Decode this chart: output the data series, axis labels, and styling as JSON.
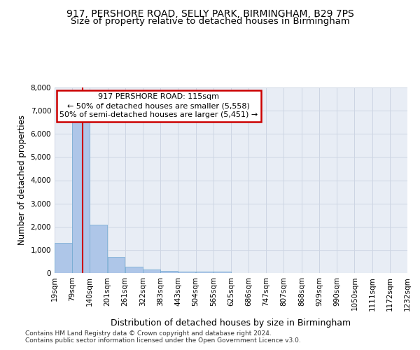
{
  "title1": "917, PERSHORE ROAD, SELLY PARK, BIRMINGHAM, B29 7PS",
  "title2": "Size of property relative to detached houses in Birmingham",
  "xlabel": "Distribution of detached houses by size in Birmingham",
  "ylabel": "Number of detached properties",
  "footer1": "Contains HM Land Registry data © Crown copyright and database right 2024.",
  "footer2": "Contains public sector information licensed under the Open Government Licence v3.0.",
  "annotation_title": "917 PERSHORE ROAD: 115sqm",
  "annotation_line1": "← 50% of detached houses are smaller (5,558)",
  "annotation_line2": "50% of semi-detached houses are larger (5,451) →",
  "property_size_sqm": 115,
  "bar_left_edges": [
    19,
    79,
    140,
    201,
    261,
    322,
    383,
    443,
    504,
    565,
    625,
    686,
    747,
    807,
    868,
    929,
    990,
    1050,
    1111,
    1172
  ],
  "bar_widths": [
    60,
    61,
    61,
    60,
    61,
    61,
    60,
    61,
    61,
    60,
    61,
    61,
    60,
    61,
    61,
    61,
    60,
    61,
    61,
    60
  ],
  "bar_heights": [
    1300,
    6580,
    2080,
    700,
    270,
    150,
    100,
    60,
    55,
    70,
    0,
    0,
    0,
    0,
    0,
    0,
    0,
    0,
    0,
    0
  ],
  "bar_color": "#aec6e8",
  "bar_edge_color": "#6fa8d0",
  "vline_x": 115,
  "vline_color": "#cc0000",
  "annotation_box_color": "#cc0000",
  "annotation_bg": "#ffffff",
  "ylim": [
    0,
    8000
  ],
  "xlim": [
    19,
    1232
  ],
  "xtick_labels": [
    "19sqm",
    "79sqm",
    "140sqm",
    "201sqm",
    "261sqm",
    "322sqm",
    "383sqm",
    "443sqm",
    "504sqm",
    "565sqm",
    "625sqm",
    "686sqm",
    "747sqm",
    "807sqm",
    "868sqm",
    "929sqm",
    "990sqm",
    "1050sqm",
    "1111sqm",
    "1172sqm",
    "1232sqm"
  ],
  "xtick_positions": [
    19,
    79,
    140,
    201,
    261,
    322,
    383,
    443,
    504,
    565,
    625,
    686,
    747,
    807,
    868,
    929,
    990,
    1050,
    1111,
    1172,
    1232
  ],
  "ytick_values": [
    0,
    1000,
    2000,
    3000,
    4000,
    5000,
    6000,
    7000,
    8000
  ],
  "grid_color": "#cdd5e3",
  "background_color": "#e8edf5",
  "title_fontsize": 10,
  "subtitle_fontsize": 9.5,
  "ylabel_fontsize": 8.5,
  "xlabel_fontsize": 9,
  "footer_fontsize": 6.5,
  "tick_fontsize": 7.5,
  "annotation_fontsize": 8
}
